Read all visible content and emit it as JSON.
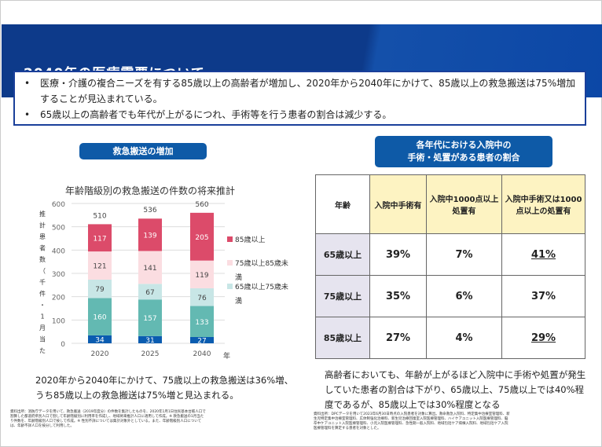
{
  "header": {
    "title": "2040年の医療需要について"
  },
  "summary": [
    "医療・介護の複合ニーズを有する85歳以上の高齢者が増加し、2020年から2040年にかけて、85歳以上の救急搬送は75%増加することが見込まれている。",
    "65歳以上の高齢者でも年代が上がるにつれ、手術等を行う患者の割合は減少する。"
  ],
  "left": {
    "pill": "救急搬送の増加",
    "note": "2020年から2040年にかけて、75歳以上の救急搬送は36%増、うち85歳以上の救急搬送は75%増と見込まれる。",
    "source": "資料出所：消防庁データを用いて、救急搬送（2019年度分）の件数を集計したものを、2020年1月1日住民基本台帳人口で割算した都道府県別人口で割して年齢階級別に利用率を作成し、地域将来推計人口に適用して作成。※ 救急搬送の1月当たり件数を、年齢階級別人口で按して作成。※ 性別不詳については集計対象外としている。また、年齢階級別人口については、年齢不詳人口を按分して利用した。"
  },
  "chart_data": {
    "type": "bar",
    "stacked": true,
    "title": "年齢階級別の救急搬送の件数の将来推計",
    "ylabel": "推計患者数（千件・1月当た",
    "xlabel": "年",
    "categories": [
      "2020",
      "2025",
      "2040"
    ],
    "ylim": [
      0,
      600
    ],
    "yticks": [
      0,
      100,
      200,
      300,
      400,
      500,
      600
    ],
    "totals": [
      510,
      536,
      560
    ],
    "legend_position": "right",
    "series": [
      {
        "name": "",
        "values": [
          34,
          31,
          27
        ],
        "color": "#0a5cb0"
      },
      {
        "name": "",
        "values": [
          160,
          157,
          133
        ],
        "color": "#63b9b2"
      },
      {
        "name": "65歳以上75歳未満",
        "values": [
          79,
          67,
          76
        ],
        "color": "#c8e6e6"
      },
      {
        "name": "75歳以上85歳未満",
        "values": [
          121,
          141,
          119
        ],
        "color": "#fbdde1"
      },
      {
        "name": "85歳以上",
        "values": [
          117,
          139,
          205
        ],
        "color": "#dc4b6a"
      }
    ]
  },
  "right": {
    "pill": "各年代における入院中の\n手術・処置がある患者の割合",
    "headers": [
      "年齢",
      "入院中手術有",
      "入院中1000点以上処置有",
      "入院中手術又は1000点以上の処置有"
    ],
    "rows": [
      [
        "65歳以上",
        "39%",
        "7%",
        "41%"
      ],
      [
        "75歳以上",
        "35%",
        "6%",
        "37%"
      ],
      [
        "85歳以上",
        "27%",
        "4%",
        "29%"
      ]
    ],
    "note": "高齢者においても、年齢が上がるほど入院中に手術や処置が発生していた患者の割合は下がり、65歳以上、75歳以上では40%程度であるが、85歳以上では30%程度となる",
    "source": "資料出所：DPCデータを用いて2023年6月30日時点の入院患者を対象に算出。救命救急入院料、特定集中治療室管理料、新生児特定集中治療室管理料、広体制強化治療料、新生児治療回復室入院医療管理料、ハイケアユニット入院医療管理料、脳卒中ケアユニット入院医療管理料、小児入院医療管理料、急性期一般入院料、地域包括ケア病棟入院料、地域包括ケア入院医療管理料を算定する患者を対象とした。"
  }
}
